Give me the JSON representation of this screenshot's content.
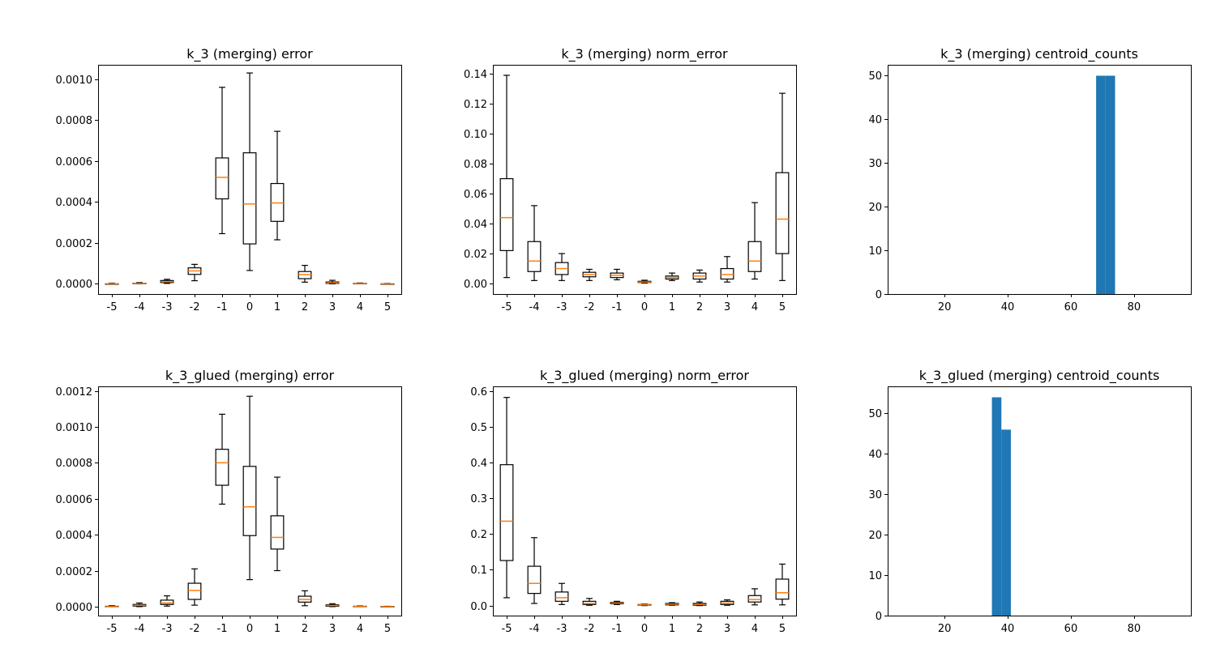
{
  "colors": {
    "box": "#000000",
    "median": "#ff7f0e",
    "bar": "#1f77b4"
  },
  "chart_data": [
    {
      "id": "k3-error",
      "type": "box",
      "title": "k_3 (merging) error",
      "categories": [
        "-5",
        "-4",
        "-3",
        "-2",
        "-1",
        "0",
        "1",
        "2",
        "3",
        "4",
        "5"
      ],
      "ylim": [
        -5e-05,
        0.00107
      ],
      "yticks": [
        0,
        0.0002,
        0.0004,
        0.0006,
        0.0008,
        0.001
      ],
      "ytick_labels": [
        "0.0000",
        "0.0002",
        "0.0004",
        "0.0006",
        "0.0008",
        "0.0010"
      ],
      "boxes": [
        {
          "wlo": 0,
          "q1": 0,
          "med": 0,
          "q3": 0,
          "whi": 3e-06
        },
        {
          "wlo": 0,
          "q1": 1e-06,
          "med": 2e-06,
          "q3": 3e-06,
          "whi": 6e-06
        },
        {
          "wlo": 2e-06,
          "q1": 6e-06,
          "med": 1e-05,
          "q3": 1.6e-05,
          "whi": 2.2e-05
        },
        {
          "wlo": 1.5e-05,
          "q1": 4.6e-05,
          "med": 6.3e-05,
          "q3": 7.8e-05,
          "whi": 9.5e-05
        },
        {
          "wlo": 0.000245,
          "q1": 0.000415,
          "med": 0.00052,
          "q3": 0.000615,
          "whi": 0.00096
        },
        {
          "wlo": 6.5e-05,
          "q1": 0.000195,
          "med": 0.00039,
          "q3": 0.00064,
          "whi": 0.00103
        },
        {
          "wlo": 0.000215,
          "q1": 0.000305,
          "med": 0.000395,
          "q3": 0.00049,
          "whi": 0.000745
        },
        {
          "wlo": 8e-06,
          "q1": 2.5e-05,
          "med": 4.5e-05,
          "q3": 6e-05,
          "whi": 9e-05
        },
        {
          "wlo": 0,
          "q1": 2e-06,
          "med": 5e-06,
          "q3": 9e-06,
          "whi": 1.7e-05
        },
        {
          "wlo": 0,
          "q1": 0,
          "med": 1e-06,
          "q3": 2e-06,
          "whi": 4e-06
        },
        {
          "wlo": 0,
          "q1": 0,
          "med": 0,
          "q3": 0,
          "whi": 2e-06
        }
      ]
    },
    {
      "id": "k3-norm-error",
      "type": "box",
      "title": "k_3 (merging) norm_error",
      "categories": [
        "-5",
        "-4",
        "-3",
        "-2",
        "-1",
        "0",
        "1",
        "2",
        "3",
        "4",
        "5"
      ],
      "ylim": [
        -0.007,
        0.146
      ],
      "yticks": [
        0,
        0.02,
        0.04,
        0.06,
        0.08,
        0.1,
        0.12,
        0.14
      ],
      "ytick_labels": [
        "0.00",
        "0.02",
        "0.04",
        "0.06",
        "0.08",
        "0.10",
        "0.12",
        "0.14"
      ],
      "boxes": [
        {
          "wlo": 0.004,
          "q1": 0.022,
          "med": 0.044,
          "q3": 0.07,
          "whi": 0.139
        },
        {
          "wlo": 0.002,
          "q1": 0.008,
          "med": 0.015,
          "q3": 0.028,
          "whi": 0.052
        },
        {
          "wlo": 0.002,
          "q1": 0.006,
          "med": 0.01,
          "q3": 0.014,
          "whi": 0.02
        },
        {
          "wlo": 0.002,
          "q1": 0.0045,
          "med": 0.006,
          "q3": 0.0075,
          "whi": 0.0095
        },
        {
          "wlo": 0.0025,
          "q1": 0.004,
          "med": 0.0055,
          "q3": 0.007,
          "whi": 0.0095
        },
        {
          "wlo": 0.0003,
          "q1": 0.0007,
          "med": 0.001,
          "q3": 0.0015,
          "whi": 0.0022
        },
        {
          "wlo": 0.002,
          "q1": 0.003,
          "med": 0.004,
          "q3": 0.005,
          "whi": 0.007
        },
        {
          "wlo": 0.001,
          "q1": 0.003,
          "med": 0.005,
          "q3": 0.007,
          "whi": 0.009
        },
        {
          "wlo": 0.001,
          "q1": 0.003,
          "med": 0.006,
          "q3": 0.01,
          "whi": 0.018
        },
        {
          "wlo": 0.003,
          "q1": 0.008,
          "med": 0.015,
          "q3": 0.028,
          "whi": 0.054
        },
        {
          "wlo": 0.002,
          "q1": 0.02,
          "med": 0.043,
          "q3": 0.074,
          "whi": 0.127
        }
      ]
    },
    {
      "id": "k3-centroid-counts",
      "type": "bar",
      "title": "k_3 (merging) centroid_counts",
      "xlim": [
        2,
        98
      ],
      "xticks": [
        20,
        40,
        60,
        80
      ],
      "xtick_labels": [
        "20",
        "40",
        "60",
        "80"
      ],
      "ylim": [
        0,
        52.5
      ],
      "yticks": [
        0,
        10,
        20,
        30,
        40,
        50
      ],
      "ytick_labels": [
        "0",
        "10",
        "20",
        "30",
        "40",
        "50"
      ],
      "bars": [
        {
          "x0": 68,
          "x1": 71,
          "value": 50
        },
        {
          "x0": 71,
          "x1": 74,
          "value": 50
        }
      ]
    },
    {
      "id": "k3glued-error",
      "type": "box",
      "title": "k_3_glued (merging) error",
      "categories": [
        "-5",
        "-4",
        "-3",
        "-2",
        "-1",
        "0",
        "1",
        "2",
        "3",
        "4",
        "5"
      ],
      "ylim": [
        -5e-05,
        0.001225
      ],
      "yticks": [
        0,
        0.0002,
        0.0004,
        0.0006,
        0.0008,
        0.001,
        0.0012
      ],
      "ytick_labels": [
        "0.0000",
        "0.0002",
        "0.0004",
        "0.0006",
        "0.0008",
        "0.0010",
        "0.0012"
      ],
      "boxes": [
        {
          "wlo": 0,
          "q1": 0,
          "med": 0,
          "q3": 2e-06,
          "whi": 5e-06
        },
        {
          "wlo": 0,
          "q1": 3e-06,
          "med": 7e-06,
          "q3": 1.2e-05,
          "whi": 2e-05
        },
        {
          "wlo": 3e-06,
          "q1": 1.2e-05,
          "med": 2e-05,
          "q3": 3.6e-05,
          "whi": 6e-05
        },
        {
          "wlo": 8e-06,
          "q1": 4e-05,
          "med": 9e-05,
          "q3": 0.00013,
          "whi": 0.00021
        },
        {
          "wlo": 0.00057,
          "q1": 0.000675,
          "med": 0.0008,
          "q3": 0.000875,
          "whi": 0.00107
        },
        {
          "wlo": 0.00015,
          "q1": 0.000395,
          "med": 0.000555,
          "q3": 0.00078,
          "whi": 0.00117
        },
        {
          "wlo": 0.0002,
          "q1": 0.00032,
          "med": 0.000385,
          "q3": 0.000505,
          "whi": 0.00072
        },
        {
          "wlo": 5e-06,
          "q1": 2.5e-05,
          "med": 4e-05,
          "q3": 5.8e-05,
          "whi": 8.8e-05
        },
        {
          "wlo": 0,
          "q1": 2e-06,
          "med": 6e-06,
          "q3": 1e-05,
          "whi": 1.6e-05
        },
        {
          "wlo": 0,
          "q1": 0,
          "med": 1e-06,
          "q3": 2e-06,
          "whi": 4e-06
        },
        {
          "wlo": 0,
          "q1": 0,
          "med": 0,
          "q3": 1e-06,
          "whi": 2e-06
        }
      ]
    },
    {
      "id": "k3glued-norm-error",
      "type": "box",
      "title": "k_3_glued (merging) norm_error",
      "categories": [
        "-5",
        "-4",
        "-3",
        "-2",
        "-1",
        "0",
        "1",
        "2",
        "3",
        "4",
        "5"
      ],
      "ylim": [
        -0.028,
        0.613
      ],
      "yticks": [
        0,
        0.1,
        0.2,
        0.3,
        0.4,
        0.5,
        0.6
      ],
      "ytick_labels": [
        "0.0",
        "0.1",
        "0.2",
        "0.3",
        "0.4",
        "0.5",
        "0.6"
      ],
      "boxes": [
        {
          "wlo": 0.022,
          "q1": 0.126,
          "med": 0.236,
          "q3": 0.394,
          "whi": 0.582
        },
        {
          "wlo": 0.006,
          "q1": 0.034,
          "med": 0.062,
          "q3": 0.11,
          "whi": 0.19
        },
        {
          "wlo": 0.003,
          "q1": 0.012,
          "med": 0.022,
          "q3": 0.038,
          "whi": 0.062
        },
        {
          "wlo": 0.001,
          "q1": 0.003,
          "med": 0.006,
          "q3": 0.012,
          "whi": 0.02
        },
        {
          "wlo": 0.003,
          "q1": 0.005,
          "med": 0.007,
          "q3": 0.009,
          "whi": 0.012
        },
        {
          "wlo": 0,
          "q1": 0.001,
          "med": 0.002,
          "q3": 0.003,
          "whi": 0.004
        },
        {
          "wlo": 0.001,
          "q1": 0.002,
          "med": 0.004,
          "q3": 0.006,
          "whi": 0.008
        },
        {
          "wlo": 0,
          "q1": 0.001,
          "med": 0.003,
          "q3": 0.006,
          "whi": 0.01
        },
        {
          "wlo": 0.001,
          "q1": 0.003,
          "med": 0.007,
          "q3": 0.012,
          "whi": 0.016
        },
        {
          "wlo": 0.002,
          "q1": 0.01,
          "med": 0.017,
          "q3": 0.028,
          "whi": 0.047
        },
        {
          "wlo": 0.002,
          "q1": 0.018,
          "med": 0.036,
          "q3": 0.074,
          "whi": 0.116
        }
      ]
    },
    {
      "id": "k3glued-centroid-counts",
      "type": "bar",
      "title": "k_3_glued (merging) centroid_counts",
      "xlim": [
        2,
        98
      ],
      "xticks": [
        20,
        40,
        60,
        80
      ],
      "xtick_labels": [
        "20",
        "40",
        "60",
        "80"
      ],
      "ylim": [
        0,
        56.7
      ],
      "yticks": [
        0,
        10,
        20,
        30,
        40,
        50
      ],
      "ytick_labels": [
        "0",
        "10",
        "20",
        "30",
        "40",
        "50"
      ],
      "bars": [
        {
          "x0": 35,
          "x1": 38,
          "value": 54
        },
        {
          "x0": 38,
          "x1": 41,
          "value": 46
        }
      ]
    }
  ]
}
